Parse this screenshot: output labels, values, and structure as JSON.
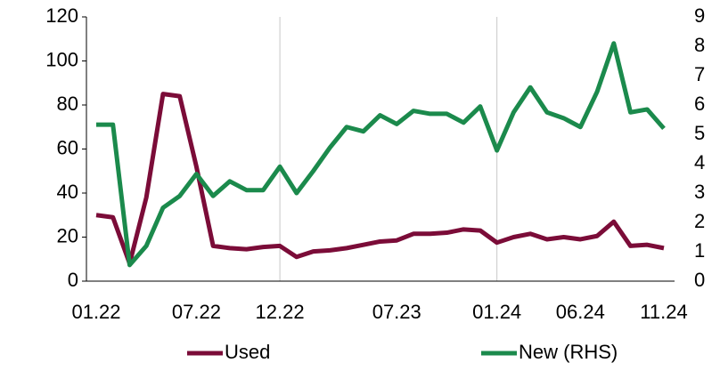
{
  "chart_data": {
    "type": "line",
    "categories": [
      "01.22",
      null,
      null,
      null,
      null,
      null,
      "07.22",
      null,
      null,
      null,
      null,
      "12.22",
      null,
      null,
      null,
      null,
      null,
      null,
      "07.23",
      null,
      null,
      null,
      null,
      null,
      "01.24",
      null,
      null,
      null,
      null,
      "06.24",
      null,
      null,
      null,
      null,
      "11.24"
    ],
    "series": [
      {
        "name": "Used",
        "color": "#7b0c38",
        "values": [
          30,
          29,
          8,
          38,
          85,
          84,
          52,
          16,
          15,
          14.5,
          15.5,
          16,
          11,
          13.5,
          14,
          15,
          16.5,
          18,
          18.5,
          21.5,
          21.5,
          22,
          23.5,
          23,
          17.5,
          20,
          21.5,
          19,
          20,
          19,
          20.5,
          27,
          16,
          16.5,
          15
        ]
      },
      {
        "name": "New (RHS)",
        "color": "#1b8a4c",
        "axis": "y2",
        "values": [
          5.33,
          5.33,
          0.55,
          1.2,
          2.5,
          2.9,
          3.65,
          2.9,
          3.4,
          3.1,
          3.1,
          3.9,
          3.0,
          3.75,
          4.55,
          5.25,
          5.1,
          5.65,
          5.35,
          5.8,
          5.7,
          5.7,
          5.4,
          5.95,
          4.45,
          5.75,
          6.6,
          5.75,
          5.55,
          5.25,
          6.45,
          8.1,
          5.75,
          5.85,
          5.2
        ]
      }
    ],
    "ylim": [
      0,
      120
    ],
    "yticks": [
      0,
      20,
      40,
      60,
      80,
      100,
      120
    ],
    "y2lim": [
      0,
      9
    ],
    "y2ticks": [
      0,
      1,
      2,
      3,
      4,
      5,
      6,
      7,
      8,
      9
    ],
    "legend": "bottom"
  }
}
